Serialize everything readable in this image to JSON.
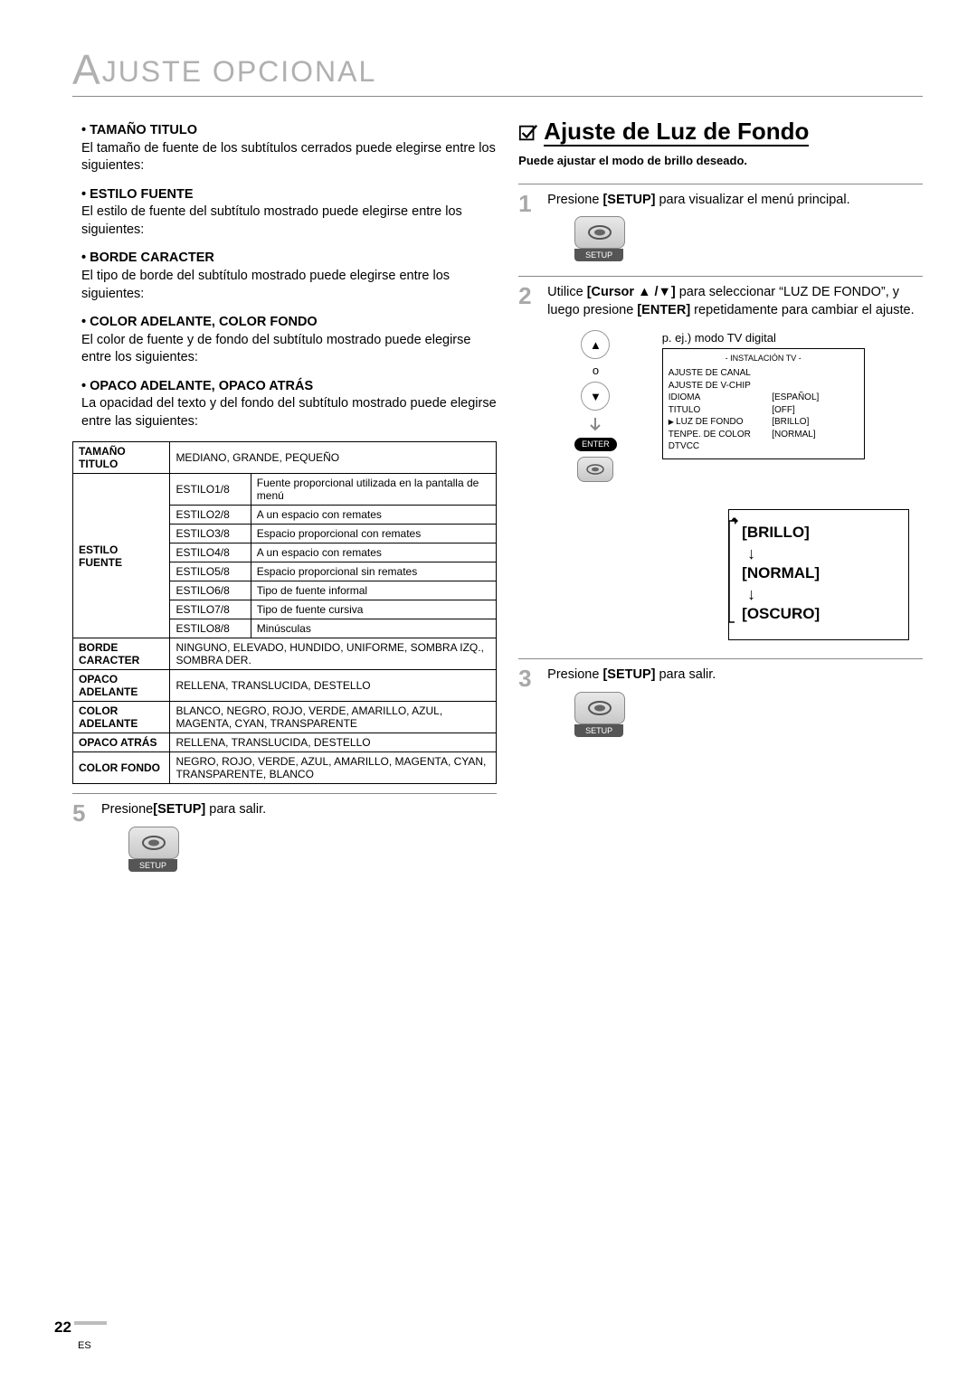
{
  "page": {
    "header": "JUSTE   OPCIONAL",
    "header_big_letter": "A",
    "page_number": "22",
    "lang": "ES"
  },
  "left": {
    "defs": [
      {
        "head": "TAMAÑO TITULO",
        "body": "El tamaño de fuente de los subtítulos cerrados puede elegirse entre los siguientes:"
      },
      {
        "head": "ESTILO FUENTE",
        "body": "El estilo de fuente del subtítulo mostrado puede elegirse entre los siguientes:"
      },
      {
        "head": "BORDE CARACTER",
        "body": "El tipo de borde del subtítulo mostrado puede elegirse entre los siguientes:"
      },
      {
        "head": "COLOR ADELANTE, COLOR FONDO",
        "body": "El color de fuente y de fondo  del subtítulo mostrado puede elegirse entre los siguientes:"
      },
      {
        "head": "OPACO ADELANTE, OPACO ATRÁS",
        "body": "La opacidad del texto y del fondo del subtítulo mostrado puede elegirse entre las siguientes:"
      }
    ],
    "table": {
      "tamano_row": {
        "label": "TAMAÑO TITULO",
        "value": "MEDIANO, GRANDE, PEQUEÑO"
      },
      "estilo_label": "ESTILO FUENTE",
      "estilos": [
        [
          "ESTILO1/8",
          "Fuente proporcional utilizada en la pantalla de menú"
        ],
        [
          "ESTILO2/8",
          "A un espacio con remates"
        ],
        [
          "ESTILO3/8",
          "Espacio proporcional con remates"
        ],
        [
          "ESTILO4/8",
          "A un espacio con remates"
        ],
        [
          "ESTILO5/8",
          "Espacio proporcional sin remates"
        ],
        [
          "ESTILO6/8",
          "Tipo de fuente informal"
        ],
        [
          "ESTILO7/8",
          "Tipo de fuente cursiva"
        ],
        [
          "ESTILO8/8",
          "Minúsculas"
        ]
      ],
      "simple_rows": [
        [
          "BORDE CARACTER",
          "NINGUNO, ELEVADO, HUNDIDO, UNIFORME, SOMBRA IZQ., SOMBRA DER."
        ],
        [
          "OPACO ADELANTE",
          "RELLENA, TRANSLUCIDA, DESTELLO"
        ],
        [
          "COLOR ADELANTE",
          "BLANCO, NEGRO, ROJO, VERDE, AMARILLO, AZUL, MAGENTA, CYAN, TRANSPARENTE"
        ],
        [
          "OPACO ATRÁS",
          "RELLENA, TRANSLUCIDA,  DESTELLO"
        ],
        [
          "COLOR FONDO",
          "NEGRO, ROJO, VERDE, AZUL, AMARILLO, MAGENTA, CYAN, TRANSPARENTE, BLANCO"
        ]
      ]
    },
    "step5_pre": "Presione",
    "step5_bold": "[SETUP]",
    "step5_post": " para salir.",
    "setup_label": "SETUP"
  },
  "right": {
    "title": "Ajuste de Luz de Fondo",
    "subtitle": "Puede ajustar el modo de brillo deseado.",
    "step1_pre": "Presione ",
    "step1_bold": "[SETUP]",
    "step1_post": " para visualizar el menú principal.",
    "step2_a": "Utilice ",
    "step2_bold_cursor": "[Cursor ▲ /▼]",
    "step2_b": " para seleccionar “LUZ DE FONDO”, y luego presione ",
    "step2_bold_enter": "[ENTER]",
    "step2_c": " repetidamente para cambiar el ajuste.",
    "menu_caption": "p. ej.) modo TV digital",
    "menu_title": "-   INSTALACIÓN TV   -",
    "menu_rows": [
      {
        "l": "AJUSTE DE CANAL",
        "r": ""
      },
      {
        "l": "AJUSTE DE V-CHIP",
        "r": ""
      },
      {
        "l": "IDIOMA",
        "r": "[ESPAÑOL]"
      },
      {
        "l": "TITULO",
        "r": "[OFF]"
      },
      {
        "l": "LUZ DE FONDO",
        "r": "[BRILLO]",
        "sel": true
      },
      {
        "l": "TENPE. DE COLOR",
        "r": "[NORMAL]"
      },
      {
        "l": "DTVCC",
        "r": ""
      }
    ],
    "enter_label": "ENTER",
    "cycle": [
      "[BRILLO]",
      "[NORMAL]",
      "[OSCURO]"
    ],
    "step3_pre": "Presione ",
    "step3_bold": "[SETUP]",
    "step3_post": " para salir.",
    "setup_label": "SETUP"
  }
}
